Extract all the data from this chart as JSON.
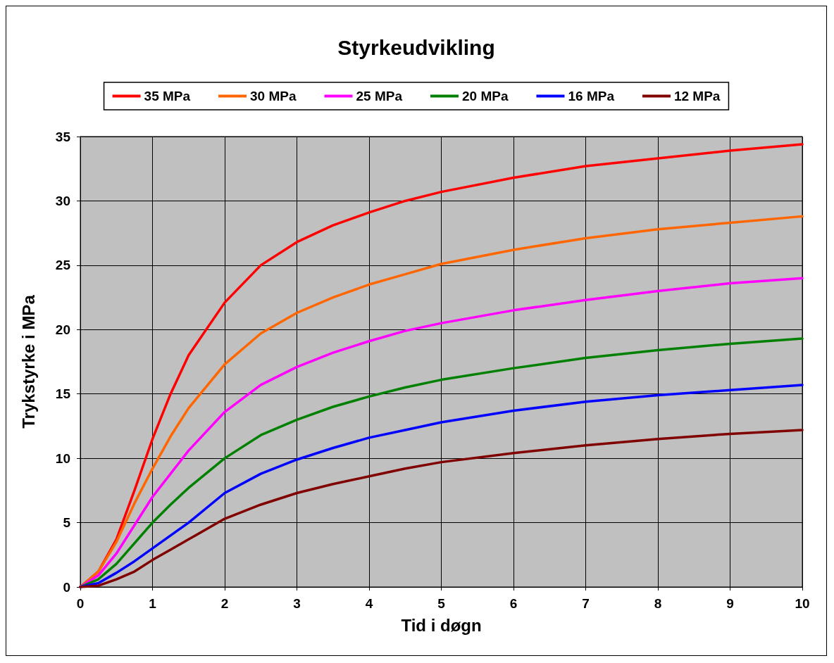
{
  "chart_data": {
    "type": "line",
    "title": "Styrkeudvikling",
    "xlabel": "Tid i døgn",
    "ylabel": "Trykstyrke i MPa",
    "x": [
      0,
      0.25,
      0.5,
      0.75,
      1,
      1.25,
      1.5,
      2,
      2.5,
      3,
      3.5,
      4,
      4.5,
      5,
      6,
      7,
      8,
      9,
      10
    ],
    "series": [
      {
        "name": "35 MPa",
        "color": "#ff0000",
        "values": [
          0,
          1.2,
          3.7,
          7.5,
          11.5,
          15,
          18,
          22.1,
          25,
          26.8,
          28.1,
          29.1,
          30,
          30.7,
          31.8,
          32.7,
          33.3,
          33.9,
          34.4
        ]
      },
      {
        "name": "30 MPa",
        "color": "#ff6600",
        "values": [
          0,
          1.2,
          3.5,
          6.5,
          9.2,
          11.7,
          13.9,
          17.3,
          19.7,
          21.3,
          22.5,
          23.5,
          24.3,
          25.1,
          26.2,
          27.1,
          27.8,
          28.3,
          28.8
        ]
      },
      {
        "name": "25 MPa",
        "color": "#ff00ff",
        "values": [
          0,
          0.9,
          2.6,
          4.8,
          7,
          8.8,
          10.6,
          13.6,
          15.7,
          17.1,
          18.2,
          19.1,
          19.9,
          20.5,
          21.5,
          22.3,
          23,
          23.6,
          24
        ]
      },
      {
        "name": "20 MPa",
        "color": "#008000",
        "values": [
          0,
          0.6,
          1.8,
          3.4,
          5,
          6.4,
          7.7,
          10,
          11.8,
          13,
          14,
          14.8,
          15.5,
          16.1,
          17,
          17.8,
          18.4,
          18.9,
          19.3
        ]
      },
      {
        "name": "16 MPa",
        "color": "#0000ff",
        "values": [
          0,
          0.3,
          1.1,
          2,
          3,
          4,
          5,
          7.3,
          8.8,
          9.9,
          10.8,
          11.6,
          12.2,
          12.8,
          13.7,
          14.4,
          14.9,
          15.3,
          15.7
        ]
      },
      {
        "name": "12 MPa",
        "color": "#800000",
        "values": [
          0,
          0.1,
          0.6,
          1.2,
          2.1,
          2.9,
          3.7,
          5.3,
          6.4,
          7.3,
          8,
          8.6,
          9.2,
          9.7,
          10.4,
          11,
          11.5,
          11.9,
          12.2
        ]
      }
    ],
    "xlim": [
      0,
      10
    ],
    "xticks": [
      0,
      1,
      2,
      3,
      4,
      5,
      6,
      7,
      8,
      9,
      10
    ],
    "ylim": [
      0,
      35
    ],
    "yticks": [
      0,
      5,
      10,
      15,
      20,
      25,
      30,
      35
    ],
    "grid": true,
    "legend": "top",
    "marker": "none",
    "line_style": "solid"
  }
}
